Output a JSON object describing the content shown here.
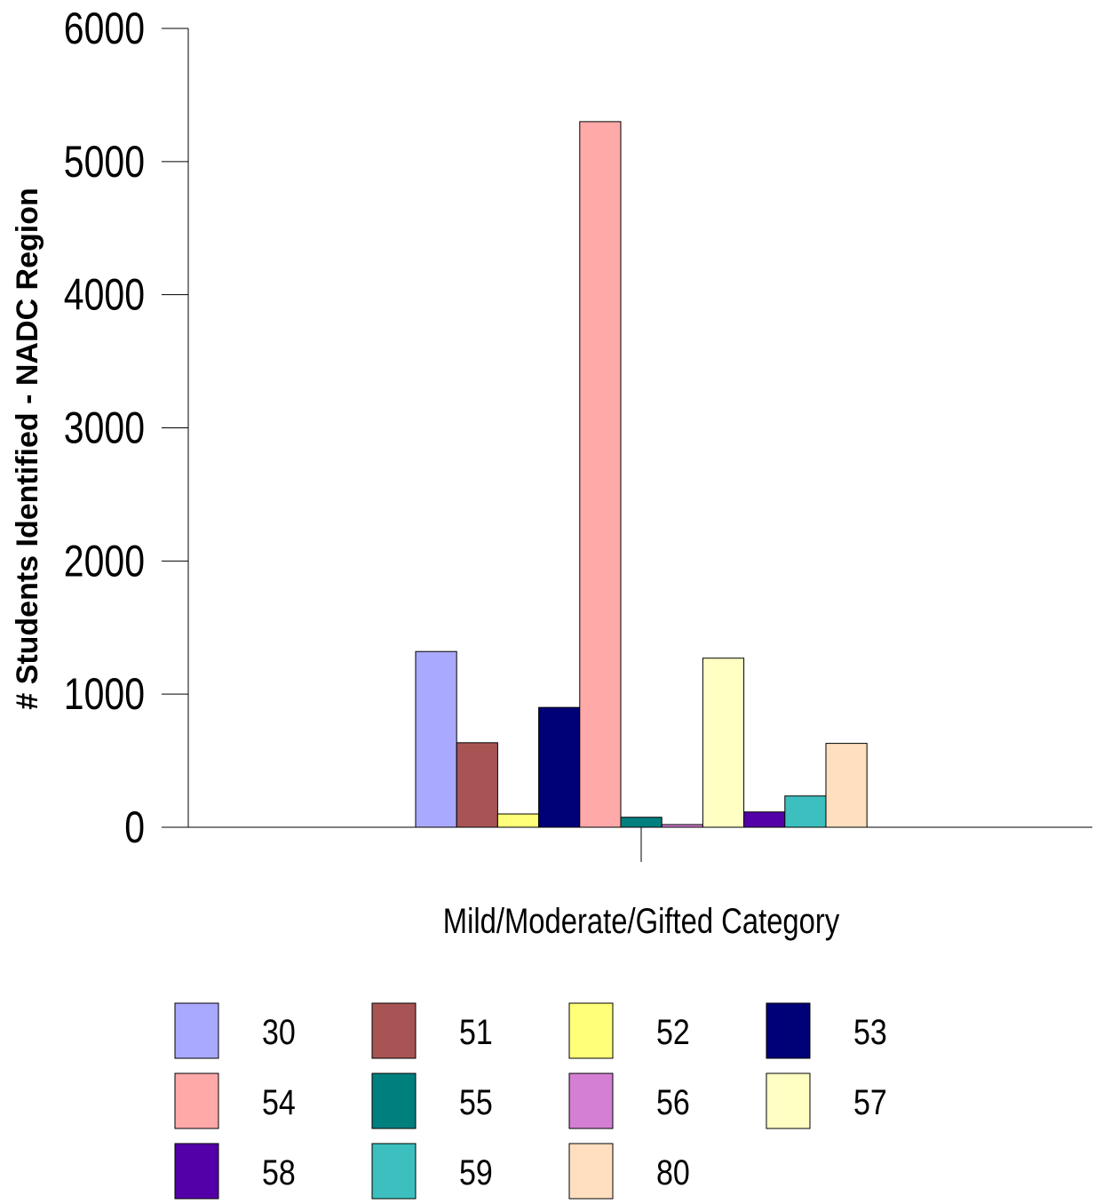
{
  "chart_data": {
    "type": "bar",
    "title": "",
    "xlabel": "Mild/Moderate/Gifted Category",
    "ylabel": "# Students Identified - NADC Region",
    "ylim": [
      0,
      6000
    ],
    "yticks": [
      "0",
      "1000",
      "2000",
      "3000",
      "4000",
      "5000",
      "6000"
    ],
    "categories": [
      "Mild/Moderate/Gifted Category"
    ],
    "grid": false,
    "legend_position": "bottom",
    "series": [
      {
        "name": "30",
        "color": "#A9A9FF",
        "values": [
          1320
        ]
      },
      {
        "name": "51",
        "color": "#A85454",
        "values": [
          635
        ]
      },
      {
        "name": "52",
        "color": "#FFFF79",
        "values": [
          100
        ]
      },
      {
        "name": "53",
        "color": "#000077",
        "values": [
          900
        ]
      },
      {
        "name": "54",
        "color": "#FFA9A9",
        "values": [
          5300
        ]
      },
      {
        "name": "55",
        "color": "#007F7F",
        "values": [
          75
        ]
      },
      {
        "name": "56",
        "color": "#D47FD4",
        "values": [
          20
        ]
      },
      {
        "name": "57",
        "color": "#FFFFC3",
        "values": [
          1270
        ]
      },
      {
        "name": "58",
        "color": "#5400A8",
        "values": [
          115
        ]
      },
      {
        "name": "59",
        "color": "#3DBFBF",
        "values": [
          235
        ]
      },
      {
        "name": "80",
        "color": "#FFDFBF",
        "values": [
          630
        ]
      }
    ]
  }
}
